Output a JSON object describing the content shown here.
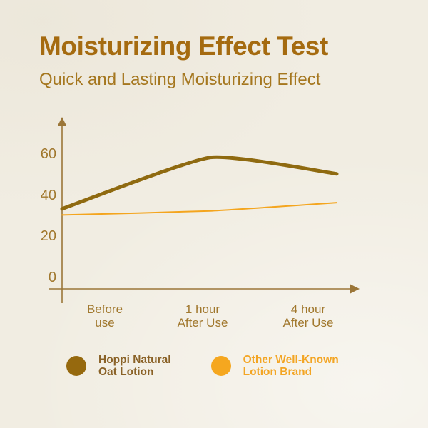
{
  "header": {
    "title": "Moisturizing Effect Test",
    "subtitle": "Quick and Lasting Moisturizing Effect"
  },
  "chart_data": {
    "type": "line",
    "title": "Moisturizing Effect Test",
    "subtitle": "Quick and Lasting Moisturizing Effect",
    "categories": [
      "Before use",
      "1 hour After Use",
      "4 hour After Use"
    ],
    "series": [
      {
        "name": "Hoppi Natural Oat Lotion",
        "values": [
          33,
          58,
          50
        ],
        "color": "#8f6a10",
        "stroke_width": 5
      },
      {
        "name": "Other Well-Known Lotion Brand",
        "values": [
          30,
          32,
          36
        ],
        "color": "#f4a51e",
        "stroke_width": 2
      }
    ],
    "yticks": [
      0,
      20,
      40,
      60
    ],
    "ylim": [
      0,
      70
    ],
    "xlabel": "",
    "ylabel": "",
    "grid": false,
    "legend_position": "bottom"
  },
  "display": {
    "xlabels": [
      "Before\nuse",
      "1 hour\nAfter Use",
      "4 hour\nAfter Use"
    ]
  },
  "legend": {
    "items": [
      {
        "label": "Hoppi Natural\nOat Lotion",
        "color": "#96690e",
        "text_color": "#8a6227"
      },
      {
        "label": "Other Well-Known\nLotion Brand",
        "color": "#f5a71f",
        "text_color": "#f3a524"
      }
    ]
  },
  "colors": {
    "background": "#f1ede2",
    "title": "#a56b10",
    "subtitle": "#a5771f",
    "axis": "#9b7638",
    "tick_labels": "#a1782e"
  }
}
